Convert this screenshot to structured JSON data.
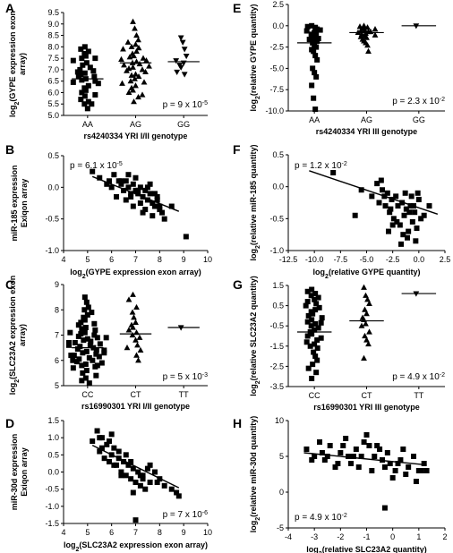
{
  "chart_data": [
    {
      "id": "A",
      "type": "scatter",
      "xlabel": "rs4240334 YRI I/II genotype",
      "ylabel": "log2(GYPE expression exon array)",
      "ylim": [
        5.0,
        9.5
      ],
      "yticks": [
        "5.0",
        "5.5",
        "6.0",
        "6.5",
        "7.0",
        "7.5",
        "8.0",
        "8.5",
        "9.0",
        "9.5"
      ],
      "categories": [
        "AA",
        "AG",
        "GG"
      ],
      "markers": [
        "square",
        "triangle",
        "triangle-down"
      ],
      "medians": [
        6.6,
        7.3,
        7.35
      ],
      "groups": [
        [
          8.0,
          7.9,
          7.8,
          7.7,
          7.6,
          7.5,
          7.5,
          7.4,
          7.3,
          7.2,
          7.1,
          7.0,
          6.95,
          6.9,
          6.85,
          6.8,
          6.7,
          6.7,
          6.6,
          6.55,
          6.5,
          6.45,
          6.4,
          6.3,
          6.2,
          6.1,
          6.0,
          5.9,
          5.85,
          5.7,
          5.6,
          5.5,
          5.5,
          5.3
        ],
        [
          9.1,
          8.8,
          8.5,
          8.3,
          8.2,
          8.1,
          8.0,
          7.95,
          7.9,
          7.8,
          7.7,
          7.6,
          7.55,
          7.5,
          7.45,
          7.4,
          7.35,
          7.3,
          7.25,
          7.2,
          7.15,
          7.1,
          7.05,
          7.0,
          6.95,
          6.9,
          6.8,
          6.75,
          6.7,
          6.6,
          6.5,
          6.45,
          6.4,
          6.3,
          6.2,
          6.1,
          6.0,
          5.9,
          5.8,
          5.6
        ],
        [
          8.4,
          8.2,
          7.9,
          7.6,
          7.4,
          7.3,
          7.2,
          7.1,
          6.9,
          6.8
        ]
      ],
      "annotation": "p = 9 x 10",
      "annotation_exp": "-5"
    },
    {
      "id": "B",
      "type": "scatter",
      "xlabel_pre": "log",
      "xlabel_post": "(GYPE expression exon array)",
      "ylabel": "miR-185 expression Exiqon array",
      "xlim": [
        4,
        10
      ],
      "ylim": [
        -1.0,
        0.5
      ],
      "xticks": [
        "4",
        "5",
        "6",
        "7",
        "8",
        "9",
        "10"
      ],
      "yticks": [
        "-1.0",
        "-0.5",
        "0.0",
        "0.5"
      ],
      "x": [
        5.2,
        5.5,
        5.8,
        6.0,
        6.1,
        6.3,
        6.4,
        6.5,
        6.6,
        6.7,
        6.8,
        6.9,
        7.0,
        7.0,
        7.1,
        7.2,
        7.3,
        7.4,
        7.5,
        7.6,
        7.7,
        7.8,
        7.9,
        8.0,
        8.1,
        6.2,
        6.6,
        6.9,
        7.2,
        7.4,
        7.7,
        8.0,
        8.2,
        6.4,
        7.1,
        7.6,
        7.9,
        5.9,
        6.8,
        7.3,
        9.1,
        8.5,
        7.5,
        6.7,
        7.8
      ],
      "y": [
        0.25,
        0.15,
        0.05,
        0.0,
        0.2,
        0.1,
        0.05,
        -0.05,
        0.1,
        0.0,
        -0.1,
        0.05,
        -0.05,
        0.15,
        -0.1,
        0.0,
        -0.15,
        -0.05,
        -0.2,
        -0.1,
        -0.25,
        -0.3,
        -0.15,
        -0.35,
        -0.4,
        -0.15,
        -0.2,
        -0.3,
        -0.25,
        -0.35,
        -0.45,
        -0.3,
        -0.5,
        0.1,
        -0.05,
        0.05,
        -0.2,
        0.1,
        -0.15,
        -0.4,
        -0.78,
        -0.3,
        0.0,
        0.2,
        -0.1
      ],
      "fit": [
        [
          5.2,
          0.17
        ],
        [
          8.8,
          -0.38
        ]
      ],
      "annotation": "p = 6.1 x 10",
      "annotation_exp": "-5"
    },
    {
      "id": "C",
      "type": "scatter",
      "xlabel": "rs16990301 YRI I/II genotype",
      "ylabel": "log2(SLC23A2 expression exon array)",
      "ylim": [
        5,
        9
      ],
      "yticks": [
        "5",
        "6",
        "7",
        "8",
        "9"
      ],
      "categories": [
        "CC",
        "CT",
        "TT"
      ],
      "markers": [
        "square",
        "triangle",
        "triangle-down"
      ],
      "medians": [
        6.5,
        7.05,
        7.3
      ],
      "groups": [
        [
          8.5,
          8.3,
          8.1,
          8.0,
          7.9,
          7.8,
          7.7,
          7.6,
          7.5,
          7.45,
          7.4,
          7.3,
          7.25,
          7.2,
          7.1,
          7.05,
          7.0,
          6.95,
          6.9,
          6.85,
          6.8,
          6.75,
          6.7,
          6.65,
          6.6,
          6.55,
          6.5,
          6.45,
          6.4,
          6.35,
          6.3,
          6.25,
          6.2,
          6.15,
          6.1,
          6.05,
          6.0,
          5.95,
          5.9,
          5.85,
          5.8,
          5.75,
          5.7,
          5.6,
          5.5,
          5.4,
          5.3,
          5.2,
          5.1,
          6.6,
          6.4,
          6.2,
          6.0,
          5.8,
          7.1,
          6.9,
          6.7,
          6.3
        ],
        [
          8.6,
          8.4,
          8.1,
          7.9,
          7.7,
          7.5,
          7.4,
          7.3,
          7.2,
          7.1,
          7.0,
          6.9,
          6.8,
          6.6,
          6.5,
          6.4,
          6.2,
          6.0
        ],
        [
          7.3
        ]
      ],
      "annotation": "p = 5 x 10",
      "annotation_exp": "-3"
    },
    {
      "id": "D",
      "type": "scatter",
      "xlabel_pre": "log",
      "xlabel_post": "(SLC23A2 expression exon array)",
      "ylabel": "miR-30d expression Exiqon array",
      "xlim": [
        4,
        10
      ],
      "ylim": [
        -1.5,
        1.5
      ],
      "xticks": [
        "4",
        "5",
        "6",
        "7",
        "8",
        "9",
        "10"
      ],
      "yticks": [
        "-1.5",
        "-1.0",
        "-0.5",
        "0.0",
        "0.5",
        "1.0",
        "1.5"
      ],
      "x": [
        5.2,
        5.4,
        5.5,
        5.6,
        5.7,
        5.8,
        5.9,
        6.0,
        6.1,
        6.2,
        6.3,
        6.4,
        6.5,
        6.6,
        6.7,
        6.8,
        6.9,
        7.0,
        7.1,
        7.2,
        7.3,
        7.4,
        7.5,
        7.6,
        7.8,
        8.0,
        8.2,
        8.5,
        8.7,
        5.5,
        5.9,
        6.3,
        6.6,
        6.9,
        7.2,
        7.6,
        7.9,
        6.1,
        6.8,
        7.3,
        7.0,
        8.8,
        6.0,
        5.6,
        6.4
      ],
      "y": [
        0.9,
        1.2,
        0.6,
        1.0,
        0.4,
        0.8,
        0.3,
        0.5,
        0.7,
        0.2,
        0.4,
        0.0,
        0.3,
        -0.1,
        0.2,
        -0.2,
        0.1,
        -0.3,
        0.0,
        -0.4,
        -0.2,
        -0.5,
        0.1,
        -0.3,
        0.0,
        -0.2,
        -0.4,
        -0.5,
        -0.6,
        1.0,
        0.9,
        0.6,
        0.5,
        -0.6,
        -0.1,
        0.2,
        -0.3,
        0.2,
        0.3,
        -0.1,
        -1.4,
        -0.7,
        1.1,
        0.7,
        -0.1
      ],
      "fit": [
        [
          5.2,
          0.78
        ],
        [
          8.8,
          -0.46
        ]
      ],
      "annotation": "p = 7 x 10",
      "annotation_exp": "-6"
    },
    {
      "id": "E",
      "type": "scatter",
      "xlabel": "rs4240334 YRI III genotype",
      "ylabel_pre": "log",
      "ylabel_post": "(relative GYPE quantity)",
      "ylim": [
        -10.0,
        2.5
      ],
      "yticks": [
        "-10.0",
        "-7.5",
        "-5.0",
        "-2.5",
        "0.0",
        "2.5"
      ],
      "categories": [
        "AA",
        "AG",
        "GG"
      ],
      "markers": [
        "square",
        "triangle",
        "triangle-down"
      ],
      "medians": [
        -2.0,
        -0.8,
        0.0
      ],
      "groups": [
        [
          0.0,
          -0.1,
          -0.2,
          -0.4,
          -0.6,
          -0.8,
          -1.0,
          -1.2,
          -1.4,
          -1.6,
          -1.8,
          -2.0,
          -2.2,
          -2.5,
          -2.8,
          -3.0,
          -3.5,
          -4.0,
          -5.0,
          -5.5,
          -6.0,
          -7.0,
          -8.5,
          -9.8,
          -1.0,
          -1.5,
          -0.5
        ],
        [
          0.0,
          -0.1,
          -0.2,
          -0.3,
          -0.5,
          -0.6,
          -0.7,
          -0.8,
          -0.9,
          -1.0,
          -1.1,
          -1.2,
          -1.4,
          -1.6,
          -1.8,
          -2.0,
          -2.3,
          -0.4,
          -0.7,
          -1.3,
          -3.0
        ],
        [
          0.0
        ]
      ],
      "annotation": "p = 2.3 x 10",
      "annotation_exp": "-2"
    },
    {
      "id": "F",
      "type": "scatter",
      "xlabel_pre": "log",
      "xlabel_post": "(relative GYPE quantity)",
      "ylabel_pre": "log",
      "ylabel_post": "(relative miR-185 quantity)",
      "xlim": [
        -12.5,
        2.5
      ],
      "ylim": [
        -1.0,
        0.5
      ],
      "xticks": [
        "-12.5",
        "-10.0",
        "-7.5",
        "-5.0",
        "-2.5",
        "0.0",
        "2.5"
      ],
      "yticks": [
        "-1.0",
        "-0.5",
        "0.0",
        "0.5"
      ],
      "x": [
        -8.2,
        -6.1,
        -4.5,
        -4.0,
        -3.8,
        -3.5,
        -3.2,
        -3.0,
        -2.8,
        -2.6,
        -2.4,
        -2.2,
        -2.0,
        -1.8,
        -1.6,
        -1.4,
        -1.2,
        -1.0,
        -0.8,
        -0.6,
        -0.4,
        -0.2,
        0.0,
        0.2,
        0.5,
        -3.3,
        -2.7,
        -2.1,
        -1.5,
        -0.9,
        -0.3,
        -2.5,
        -1.7,
        -1.1,
        -0.5,
        -3.6,
        -2.9,
        -1.3,
        -0.7,
        -5.5,
        1.0,
        -0.1
      ],
      "y": [
        0.22,
        -0.45,
        -0.15,
        0.05,
        -0.25,
        -0.05,
        -0.3,
        -0.1,
        -0.4,
        -0.2,
        -0.5,
        -0.15,
        -0.3,
        -0.6,
        -0.25,
        -0.45,
        -0.35,
        -0.7,
        -0.3,
        -0.55,
        -0.4,
        -0.65,
        -0.2,
        -0.5,
        -0.45,
        -0.15,
        -0.35,
        -0.55,
        -0.75,
        -0.4,
        -0.85,
        -0.6,
        -0.9,
        -0.8,
        -0.3,
        0.1,
        -0.7,
        -0.1,
        -0.15,
        -0.05,
        -0.3,
        -0.1
      ],
      "fit": [
        [
          -10.5,
          0.25
        ],
        [
          1.8,
          -0.43
        ]
      ],
      "annotation": "p = 1.2 x 10",
      "annotation_exp": "-2"
    },
    {
      "id": "G",
      "type": "scatter",
      "xlabel": "rs16990301 YRI III genotype",
      "ylabel_pre": "log",
      "ylabel_post": "(relative SLC23A2 quantity)",
      "ylim": [
        -3.5,
        1.5
      ],
      "yticks": [
        "-3.5",
        "-2.5",
        "-1.5",
        "-0.5",
        "0.5",
        "1.5"
      ],
      "categories": [
        "CC",
        "CT",
        "TT"
      ],
      "markers": [
        "square",
        "triangle",
        "triangle-down"
      ],
      "medians": [
        -0.8,
        -0.25,
        1.1
      ],
      "groups": [
        [
          1.3,
          1.2,
          1.1,
          1.0,
          0.9,
          0.8,
          0.6,
          0.5,
          0.4,
          0.3,
          0.2,
          0.1,
          0.0,
          -0.1,
          -0.2,
          -0.3,
          -0.4,
          -0.5,
          -0.6,
          -0.7,
          -0.8,
          -0.9,
          -1.0,
          -1.1,
          -1.2,
          -1.3,
          -1.4,
          -1.5,
          -1.6,
          -1.8,
          -2.0,
          -2.2,
          -2.4,
          -2.6,
          -2.8,
          -3.1,
          0.7,
          -0.35
        ],
        [
          1.4,
          1.0,
          0.8,
          0.6,
          0.3,
          0.1,
          -0.1,
          -0.2,
          -0.4,
          -0.5,
          -0.8,
          -1.0,
          -1.2,
          -1.4,
          -2.1
        ],
        [
          1.1
        ]
      ],
      "annotation": "p = 4.9 x 10",
      "annotation_exp": "-2"
    },
    {
      "id": "H",
      "type": "scatter",
      "xlabel_pre": "log",
      "xlabel_post": "(relative SLC23A2 quantity)",
      "ylabel_pre": "log",
      "ylabel_post": "(relative miR-30d quantity)",
      "xlim": [
        -4,
        2
      ],
      "ylim": [
        -5,
        10
      ],
      "xticks": [
        "-4",
        "-3",
        "-2",
        "-1",
        "0",
        "1",
        "2"
      ],
      "yticks": [
        "-5",
        "0",
        "5",
        "10"
      ],
      "x": [
        -3.3,
        -3.0,
        -2.8,
        -2.6,
        -2.4,
        -2.2,
        -2.0,
        -1.8,
        -1.6,
        -1.4,
        -1.2,
        -1.0,
        -0.8,
        -0.6,
        -0.4,
        -0.2,
        0.0,
        0.2,
        0.4,
        0.6,
        0.8,
        1.0,
        1.2,
        -3.1,
        -2.5,
        -1.9,
        -1.3,
        -0.7,
        -0.1,
        0.5,
        1.1,
        -2.7,
        -1.5,
        -0.9,
        -0.3,
        0.3,
        0.9,
        -1.7,
        -0.5,
        0.1,
        -0.3,
        1.3,
        -2.1,
        -1.1
      ],
      "y": [
        6.0,
        5.0,
        7.0,
        4.5,
        6.5,
        3.5,
        5.5,
        7.5,
        4.0,
        6.0,
        5.0,
        8.0,
        3.0,
        6.5,
        4.5,
        5.5,
        2.0,
        4.0,
        6.0,
        3.5,
        5.0,
        3.0,
        4.0,
        4.5,
        5.0,
        6.5,
        3.5,
        5.0,
        4.0,
        2.5,
        3.0,
        5.5,
        5.0,
        6.5,
        3.5,
        4.5,
        1.5,
        5.0,
        6.0,
        3.0,
        -2.2,
        3.0,
        4.0,
        7.0
      ],
      "fit": [
        [
          -3.4,
          5.5
        ],
        [
          1.3,
          3.8
        ]
      ],
      "annotation": "p = 4.9 x 10",
      "annotation_exp": "-2"
    }
  ]
}
